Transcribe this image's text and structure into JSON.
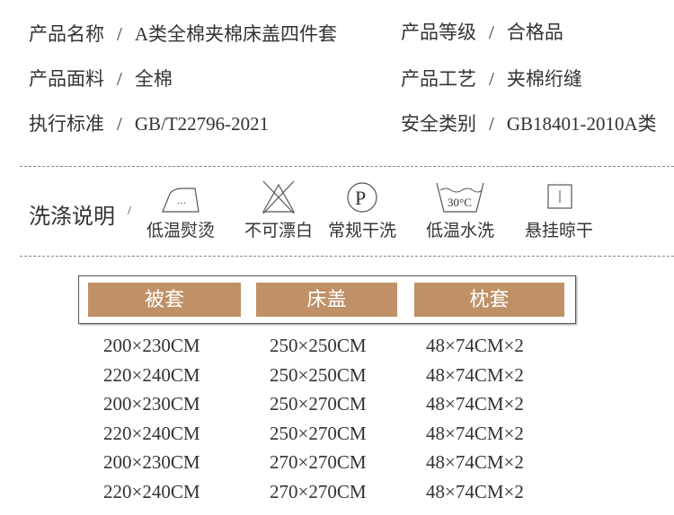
{
  "info": [
    {
      "label": "产品名称",
      "value": "A类全棉夹棉床盖四件套"
    },
    {
      "label": "产品等级",
      "value": "合格品"
    },
    {
      "label": "产品面料",
      "value": "全棉"
    },
    {
      "label": "产品工艺",
      "value": "夹棉绗缝"
    },
    {
      "label": "执行标准",
      "value": "GB/T22796-2021"
    },
    {
      "label": "安全类别",
      "value": "GB18401-2010A类"
    }
  ],
  "separator": "/",
  "wash": {
    "title": "洗涤说明",
    "items": [
      {
        "icon": "iron-low-icon",
        "label": "低温熨烫"
      },
      {
        "icon": "no-bleach-icon",
        "label": "不可漂白"
      },
      {
        "icon": "dry-clean-p-icon",
        "label": "常规干洗"
      },
      {
        "icon": "wash-30-icon",
        "label": "低温水洗",
        "temp": "30°C"
      },
      {
        "icon": "hang-dry-icon",
        "label": "悬挂晾干"
      }
    ]
  },
  "table": {
    "headers": [
      "被套",
      "床盖",
      "枕套"
    ],
    "rows": [
      [
        "200×230CM",
        "250×250CM",
        "48×74CM×2"
      ],
      [
        "220×240CM",
        "250×250CM",
        "48×74CM×2"
      ],
      [
        "200×230CM",
        "250×270CM",
        "48×74CM×2"
      ],
      [
        "220×240CM",
        "250×270CM",
        "48×74CM×2"
      ],
      [
        "200×230CM",
        "270×270CM",
        "48×74CM×2"
      ],
      [
        "220×240CM",
        "270×270CM",
        "48×74CM×2"
      ]
    ]
  },
  "colors": {
    "header_bg": "#c09066",
    "text": "#333333"
  }
}
